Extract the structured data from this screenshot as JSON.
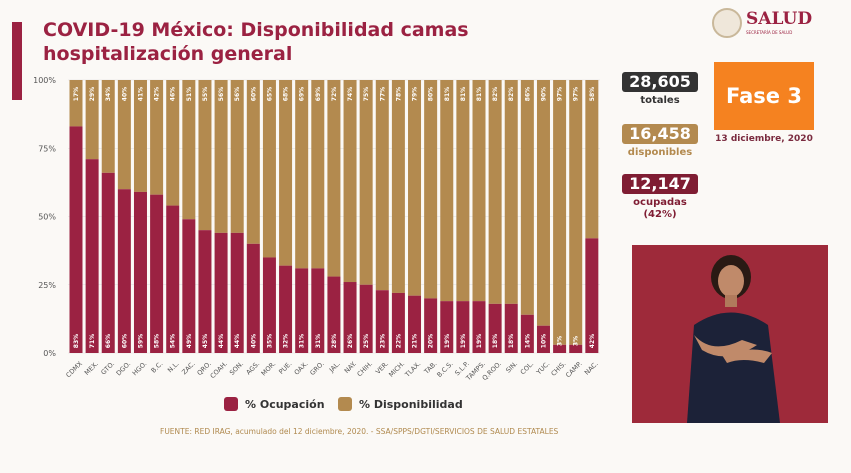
{
  "header": {
    "title": "COVID-19 México: Disponibilidad camas hospitalización general",
    "logo_text": "SALUD",
    "logo_sub": "SECRETARÍA DE SALUD"
  },
  "stats": {
    "total": "28,605",
    "total_label": "totales",
    "available": "16,458",
    "available_label": "disponibles",
    "occupied": "12,147",
    "occupied_label": "ocupadas",
    "occupied_pct": "(42%)"
  },
  "phase": {
    "label": "Fase 3",
    "date": "13 diciembre, 2020",
    "color": "#f58220"
  },
  "source": "FUENTE: RED IRAG, acumulado del 12 diciembre, 2020. -  SSA/SPPS/DGTI/SERVICIOS DE SALUD ESTATALES",
  "chart_data": {
    "type": "bar",
    "stacked": true,
    "categories": [
      "CDMX",
      "MEX.",
      "GTO.",
      "DGO.",
      "HGO.",
      "B.C.",
      "N.L.",
      "ZAC.",
      "QRO.",
      "COAH.",
      "SON.",
      "AGS.",
      "MOR.",
      "PUE.",
      "OAX.",
      "GRO.",
      "JAL.",
      "NAY.",
      "CHIH.",
      "VER.",
      "MICH.",
      "TLAX.",
      "TAB.",
      "B.C.S.",
      "S.L.P.",
      "TAMPS.",
      "Q.ROO.",
      "SIN.",
      "COL.",
      "YUC.",
      "CHIS.",
      "CAMP.",
      "NAC."
    ],
    "series": [
      {
        "name": "% Ocupación",
        "color": "#9b2242",
        "values": [
          83,
          71,
          66,
          60,
          59,
          58,
          54,
          49,
          45,
          44,
          44,
          40,
          35,
          32,
          31,
          31,
          28,
          26,
          25,
          23,
          22,
          21,
          20,
          19,
          19,
          19,
          18,
          18,
          14,
          10,
          3,
          3,
          42
        ]
      },
      {
        "name": "% Disponibilidad",
        "color": "#b38a4f",
        "values": [
          17,
          29,
          34,
          40,
          41,
          42,
          46,
          51,
          55,
          56,
          56,
          60,
          65,
          68,
          69,
          69,
          72,
          74,
          75,
          77,
          78,
          79,
          80,
          81,
          81,
          81,
          82,
          82,
          86,
          90,
          97,
          97,
          58
        ]
      }
    ],
    "yticks": [
      "0%",
      "25%",
      "50%",
      "75%",
      "100%"
    ],
    "ylim": [
      0,
      100
    ],
    "legend": "bottom"
  }
}
